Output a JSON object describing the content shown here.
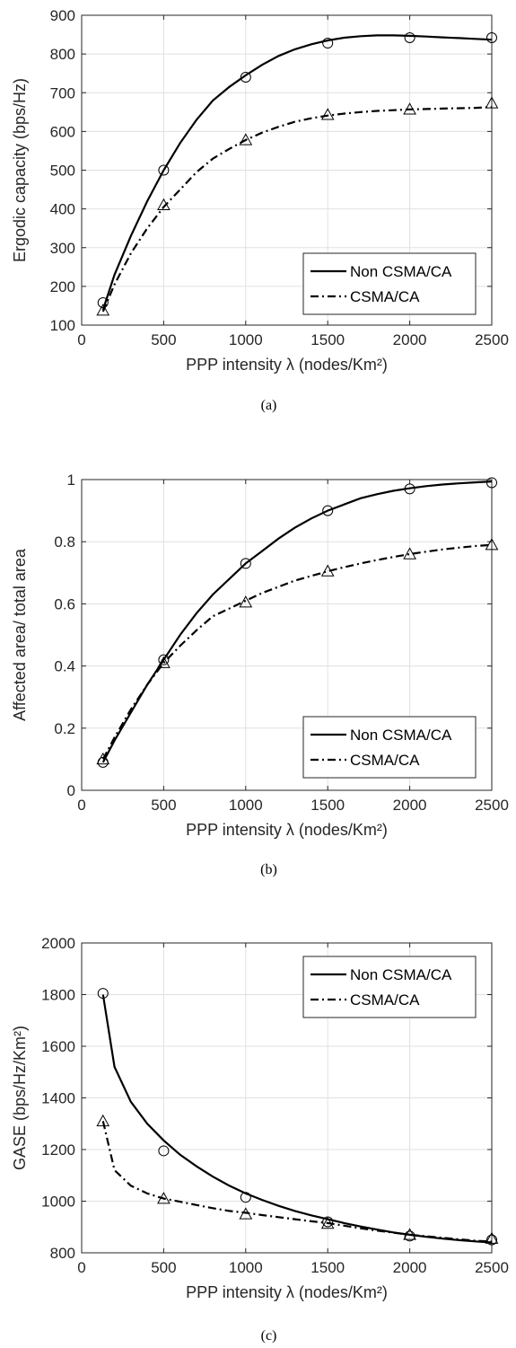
{
  "charts": [
    {
      "caption": "(a)",
      "chart_data": {
        "type": "line",
        "xlabel": "PPP intensity λ (nodes/Km²)",
        "ylabel": "Ergodic capacity (bps/Hz)",
        "xlim": [
          0,
          2500
        ],
        "ylim": [
          100,
          900
        ],
        "xticks": [
          0,
          500,
          1000,
          1500,
          2000,
          2500
        ],
        "yticks": [
          100,
          200,
          300,
          400,
          500,
          600,
          700,
          800,
          900
        ],
        "grid": true,
        "legend_position": "bottom-right",
        "series": [
          {
            "name": "Non CSMA/CA",
            "line_style": "solid",
            "marker": "circle",
            "curve": {
              "x": [
                130,
                200,
                300,
                400,
                500,
                600,
                700,
                800,
                900,
                1000,
                1100,
                1200,
                1300,
                1400,
                1500,
                1600,
                1700,
                1800,
                1900,
                2000,
                2100,
                2200,
                2300,
                2400,
                2500
              ],
              "y": [
                140,
                230,
                330,
                420,
                500,
                570,
                630,
                680,
                715,
                745,
                772,
                795,
                812,
                825,
                835,
                842,
                846,
                848,
                848,
                847,
                845,
                843,
                841,
                839,
                837
              ]
            },
            "markers": {
              "x": [
                130,
                500,
                1000,
                1500,
                2000,
                2500
              ],
              "y": [
                158,
                500,
                740,
                828,
                842,
                842
              ]
            }
          },
          {
            "name": "CSMA/CA",
            "line_style": "dashdot",
            "marker": "triangle",
            "curve": {
              "x": [
                130,
                200,
                300,
                400,
                500,
                600,
                700,
                800,
                900,
                1000,
                1100,
                1200,
                1300,
                1400,
                1500,
                1600,
                1700,
                1800,
                1900,
                2000,
                2100,
                2200,
                2300,
                2400,
                2500
              ],
              "y": [
                135,
                205,
                285,
                350,
                405,
                450,
                495,
                530,
                555,
                578,
                597,
                612,
                625,
                634,
                641,
                646,
                650,
                653,
                655,
                657,
                658,
                659,
                660,
                661,
                663
              ]
            },
            "markers": {
              "x": [
                130,
                500,
                1000,
                1500,
                2000,
                2500
              ],
              "y": [
                138,
                410,
                578,
                643,
                657,
                673
              ]
            }
          }
        ]
      }
    },
    {
      "caption": "(b)",
      "chart_data": {
        "type": "line",
        "xlabel": "PPP intensity λ (nodes/Km²)",
        "ylabel": "Affected area/ total area",
        "xlim": [
          0,
          2500
        ],
        "ylim": [
          0,
          1
        ],
        "xticks": [
          0,
          500,
          1000,
          1500,
          2000,
          2500
        ],
        "yticks": [
          0,
          0.2,
          0.4,
          0.6,
          0.8,
          1
        ],
        "grid": true,
        "legend_position": "bottom-right",
        "series": [
          {
            "name": "Non CSMA/CA",
            "line_style": "solid",
            "marker": "circle",
            "curve": {
              "x": [
                130,
                200,
                300,
                400,
                500,
                600,
                700,
                800,
                900,
                1000,
                1100,
                1200,
                1300,
                1400,
                1500,
                1600,
                1700,
                1800,
                1900,
                2000,
                2100,
                2200,
                2300,
                2400,
                2500
              ],
              "y": [
                0.09,
                0.16,
                0.25,
                0.34,
                0.42,
                0.5,
                0.57,
                0.63,
                0.68,
                0.73,
                0.77,
                0.81,
                0.845,
                0.875,
                0.9,
                0.92,
                0.94,
                0.953,
                0.964,
                0.972,
                0.979,
                0.984,
                0.988,
                0.991,
                0.994
              ]
            },
            "markers": {
              "x": [
                130,
                500,
                1000,
                1500,
                2000,
                2500
              ],
              "y": [
                0.09,
                0.42,
                0.73,
                0.9,
                0.97,
                0.99
              ]
            }
          },
          {
            "name": "CSMA/CA",
            "line_style": "dashdot",
            "marker": "triangle",
            "curve": {
              "x": [
                130,
                200,
                300,
                400,
                500,
                600,
                700,
                800,
                900,
                1000,
                1100,
                1200,
                1300,
                1400,
                1500,
                1600,
                1700,
                1800,
                1900,
                2000,
                2100,
                2200,
                2300,
                2400,
                2500
              ],
              "y": [
                0.1,
                0.17,
                0.26,
                0.34,
                0.41,
                0.465,
                0.515,
                0.56,
                0.585,
                0.61,
                0.635,
                0.655,
                0.675,
                0.69,
                0.705,
                0.718,
                0.73,
                0.741,
                0.751,
                0.76,
                0.768,
                0.775,
                0.781,
                0.786,
                0.79
              ]
            },
            "markers": {
              "x": [
                130,
                500,
                1000,
                1500,
                2000,
                2500
              ],
              "y": [
                0.1,
                0.41,
                0.605,
                0.705,
                0.76,
                0.79
              ]
            }
          }
        ]
      }
    },
    {
      "caption": "(c)",
      "chart_data": {
        "type": "line",
        "xlabel": "PPP intensity λ (nodes/Km²)",
        "ylabel": "GASE (bps/Hz/Km²)",
        "xlim": [
          0,
          2500
        ],
        "ylim": [
          800,
          2000
        ],
        "xticks": [
          0,
          500,
          1000,
          1500,
          2000,
          2500
        ],
        "yticks": [
          800,
          1000,
          1200,
          1400,
          1600,
          1800,
          2000
        ],
        "grid": true,
        "legend_position": "top-right",
        "series": [
          {
            "name": "Non CSMA/CA",
            "line_style": "solid",
            "marker": "circle",
            "curve": {
              "x": [
                130,
                200,
                300,
                400,
                500,
                600,
                700,
                800,
                900,
                1000,
                1100,
                1200,
                1300,
                1400,
                1500,
                1600,
                1700,
                1800,
                1900,
                2000,
                2100,
                2200,
                2300,
                2400,
                2500
              ],
              "y": [
                1800,
                1520,
                1385,
                1300,
                1235,
                1180,
                1135,
                1095,
                1060,
                1030,
                1005,
                982,
                962,
                945,
                930,
                915,
                902,
                890,
                879,
                870,
                862,
                855,
                849,
                844,
                840
              ]
            },
            "markers": {
              "x": [
                130,
                500,
                1000,
                1500,
                2000,
                2500
              ],
              "y": [
                1805,
                1195,
                1015,
                920,
                865,
                850
              ]
            }
          },
          {
            "name": "CSMA/CA",
            "line_style": "dashdot",
            "marker": "triangle",
            "curve": {
              "x": [
                130,
                200,
                300,
                400,
                500,
                600,
                700,
                800,
                900,
                1000,
                1100,
                1200,
                1300,
                1400,
                1500,
                1600,
                1700,
                1800,
                1900,
                2000,
                2100,
                2200,
                2300,
                2400,
                2500
              ],
              "y": [
                1310,
                1120,
                1060,
                1030,
                1010,
                998,
                985,
                973,
                962,
                955,
                946,
                938,
                930,
                922,
                915,
                905,
                895,
                886,
                878,
                870,
                864,
                858,
                852,
                847,
                843
              ]
            },
            "markers": {
              "x": [
                130,
                500,
                1000,
                1500,
                2000,
                2500
              ],
              "y": [
                1310,
                1010,
                950,
                913,
                870,
                855
              ]
            }
          }
        ]
      }
    }
  ]
}
